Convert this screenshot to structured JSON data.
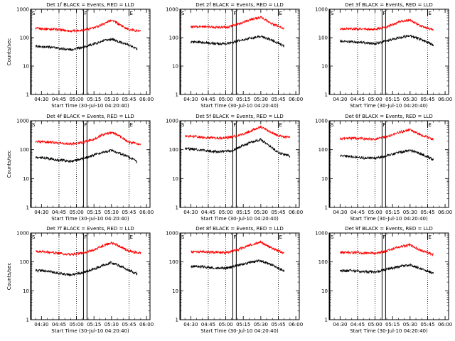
{
  "chart_data": [
    {
      "type": "line",
      "title": "Det 1f BLACK = Events, RED = LLD",
      "xlabel": "Start Time (30-Jul-10 04:20:40)",
      "ylabel": "Counts/sec",
      "ylim": [
        1,
        1000
      ],
      "yscale": "log",
      "yticks": [
        "1",
        "10",
        "100",
        "1000"
      ],
      "xticks": [
        "04:30",
        "04:45",
        "05:00",
        "05:15",
        "05:30",
        "05:45",
        "06:00"
      ],
      "xlim": [
        "04:20:40",
        "06:03"
      ],
      "markers": [
        "S",
        "F",
        "E"
      ],
      "series": [
        {
          "color": "#ff0000",
          "x": [
            "04:25",
            "04:35",
            "04:45",
            "04:55",
            "05:05",
            "05:15",
            "05:25",
            "05:30",
            "05:35",
            "05:45",
            "05:55"
          ],
          "y": [
            210,
            205,
            190,
            170,
            185,
            220,
            330,
            430,
            320,
            190,
            170
          ]
        },
        {
          "color": "#000000",
          "x": [
            "04:25",
            "04:35",
            "04:45",
            "04:55",
            "05:05",
            "05:15",
            "05:25",
            "05:30",
            "05:35",
            "05:45",
            "05:52"
          ],
          "y": [
            50,
            48,
            42,
            38,
            45,
            60,
            80,
            90,
            75,
            55,
            40
          ]
        }
      ]
    },
    {
      "type": "line",
      "title": "Det 2f BLACK = Events, RED = LLD",
      "xlabel": "Start Time (30-Jul-10 04:20:40)",
      "ylabel": "",
      "ylim": [
        1,
        1000
      ],
      "yscale": "log",
      "yticks": [
        "1",
        "10",
        "100",
        "1000"
      ],
      "xticks": [
        "04:30",
        "04:45",
        "05:00",
        "05:15",
        "05:30",
        "05:45",
        "06:00"
      ],
      "xlim": [
        "04:20:40",
        "06:03"
      ],
      "markers": [
        "S",
        "F",
        "E"
      ],
      "series": [
        {
          "color": "#ff0000",
          "x": [
            "04:30",
            "04:40",
            "04:50",
            "05:00",
            "05:10",
            "05:20",
            "05:30",
            "05:40",
            "05:50"
          ],
          "y": [
            240,
            245,
            235,
            230,
            290,
            420,
            520,
            300,
            210
          ]
        },
        {
          "color": "#000000",
          "x": [
            "04:30",
            "04:40",
            "04:50",
            "05:00",
            "05:10",
            "05:20",
            "05:30",
            "05:40",
            "05:50"
          ],
          "y": [
            70,
            68,
            62,
            60,
            75,
            95,
            110,
            80,
            50
          ]
        }
      ]
    },
    {
      "type": "line",
      "title": "Det 3f BLACK = Events, RED = LLD",
      "xlabel": "Start Time (30-Jul-10 04:20:40)",
      "ylabel": "",
      "ylim": [
        1,
        1000
      ],
      "yscale": "log",
      "yticks": [
        "1",
        "10",
        "100",
        "1000"
      ],
      "xticks": [
        "04:30",
        "04:45",
        "05:00",
        "05:15",
        "05:30",
        "05:45",
        "06:00"
      ],
      "xlim": [
        "04:20:40",
        "06:03"
      ],
      "markers": [
        "S",
        "F",
        "E"
      ],
      "series": [
        {
          "color": "#ff0000",
          "x": [
            "04:30",
            "04:40",
            "04:50",
            "05:00",
            "05:10",
            "05:20",
            "05:30",
            "05:40",
            "05:50"
          ],
          "y": [
            200,
            205,
            200,
            195,
            240,
            350,
            420,
            250,
            190
          ]
        },
        {
          "color": "#000000",
          "x": [
            "04:30",
            "04:40",
            "04:50",
            "05:00",
            "05:10",
            "05:20",
            "05:30",
            "05:40",
            "05:50"
          ],
          "y": [
            75,
            72,
            66,
            62,
            78,
            100,
            115,
            85,
            55
          ]
        }
      ]
    },
    {
      "type": "line",
      "title": "Det 4f BLACK = Events, RED = LLD",
      "xlabel": "Start Time (30-Jul-10 04:20:40)",
      "ylabel": "Counts/sec",
      "ylim": [
        1,
        1000
      ],
      "yscale": "log",
      "yticks": [
        "1",
        "10",
        "100",
        "1000"
      ],
      "xticks": [
        "04:30",
        "04:45",
        "05:00",
        "05:15",
        "05:30",
        "05:45",
        "06:00"
      ],
      "xlim": [
        "04:20:40",
        "06:03"
      ],
      "markers": [
        "S",
        "F",
        "E"
      ],
      "series": [
        {
          "color": "#ff0000",
          "x": [
            "04:25",
            "04:35",
            "04:45",
            "04:55",
            "05:05",
            "05:15",
            "05:25",
            "05:30",
            "05:35",
            "05:45",
            "05:55"
          ],
          "y": [
            190,
            185,
            170,
            160,
            175,
            230,
            360,
            400,
            330,
            180,
            150
          ]
        },
        {
          "color": "#000000",
          "x": [
            "04:25",
            "04:35",
            "04:45",
            "04:55",
            "05:05",
            "05:15",
            "05:25",
            "05:30",
            "05:35",
            "05:45",
            "05:52"
          ],
          "y": [
            55,
            50,
            43,
            40,
            48,
            65,
            85,
            95,
            80,
            55,
            38
          ]
        }
      ]
    },
    {
      "type": "line",
      "title": "Det 5f BLACK = Events, RED = LLD",
      "xlabel": "Start Time (30-Jul-10 04:20:40)",
      "ylabel": "",
      "ylim": [
        1,
        1000
      ],
      "yscale": "log",
      "yticks": [
        "1",
        "10",
        "100",
        "1000"
      ],
      "xticks": [
        "04:30",
        "04:45",
        "05:00",
        "05:15",
        "05:30",
        "05:45",
        "06:00"
      ],
      "xlim": [
        "04:20:40",
        "06:03"
      ],
      "markers": [
        "S",
        "F",
        "E"
      ],
      "series": [
        {
          "color": "#ff0000",
          "x": [
            "04:25",
            "04:35",
            "04:45",
            "04:55",
            "05:05",
            "05:15",
            "05:25",
            "05:30",
            "05:35",
            "05:45",
            "05:55"
          ],
          "y": [
            290,
            280,
            260,
            250,
            270,
            340,
            520,
            600,
            480,
            300,
            260
          ]
        },
        {
          "color": "#000000",
          "x": [
            "04:25",
            "04:35",
            "04:45",
            "04:55",
            "05:05",
            "05:15",
            "05:25",
            "05:30",
            "05:35",
            "05:45",
            "05:55"
          ],
          "y": [
            110,
            100,
            90,
            85,
            90,
            140,
            200,
            220,
            160,
            80,
            60
          ]
        }
      ]
    },
    {
      "type": "line",
      "title": "Det 6f BLACK = Events, RED = LLD",
      "xlabel": "Start Time (30-Jul-10 04:20:40)",
      "ylabel": "",
      "ylim": [
        1,
        1000
      ],
      "yscale": "log",
      "yticks": [
        "1",
        "10",
        "100",
        "1000"
      ],
      "xticks": [
        "04:30",
        "04:45",
        "05:00",
        "05:15",
        "05:30",
        "05:45",
        "06:00"
      ],
      "xlim": [
        "04:20:40",
        "06:03"
      ],
      "markers": [
        "S",
        "F",
        "E"
      ],
      "series": [
        {
          "color": "#ff0000",
          "x": [
            "04:30",
            "04:40",
            "04:50",
            "05:00",
            "05:10",
            "05:20",
            "05:30",
            "05:40",
            "05:50"
          ],
          "y": [
            240,
            250,
            240,
            230,
            280,
            400,
            480,
            320,
            230
          ]
        },
        {
          "color": "#000000",
          "x": [
            "04:30",
            "04:40",
            "04:50",
            "05:00",
            "05:10",
            "05:20",
            "05:30",
            "05:40",
            "05:50"
          ],
          "y": [
            60,
            58,
            52,
            50,
            62,
            80,
            95,
            70,
            45
          ]
        }
      ]
    },
    {
      "type": "line",
      "title": "Det 7f BLACK = Events, RED = LLD",
      "xlabel": "Start Time (30-Jul-10 04:20:40)",
      "ylabel": "Counts/sec",
      "ylim": [
        1,
        1000
      ],
      "yscale": "log",
      "yticks": [
        "1",
        "10",
        "100",
        "1000"
      ],
      "xticks": [
        "04:30",
        "04:45",
        "05:00",
        "05:15",
        "05:30",
        "05:45",
        "06:00"
      ],
      "xlim": [
        "04:20:40",
        "06:03"
      ],
      "markers": [
        "S",
        "F",
        "E"
      ],
      "series": [
        {
          "color": "#ff0000",
          "x": [
            "04:25",
            "04:35",
            "04:45",
            "04:55",
            "05:05",
            "05:15",
            "05:25",
            "05:30",
            "05:35",
            "05:45",
            "05:55"
          ],
          "y": [
            230,
            220,
            200,
            180,
            200,
            260,
            400,
            460,
            380,
            240,
            200
          ]
        },
        {
          "color": "#000000",
          "x": [
            "04:25",
            "04:35",
            "04:45",
            "04:55",
            "05:05",
            "05:15",
            "05:25",
            "05:30",
            "05:35",
            "05:45",
            "05:52"
          ],
          "y": [
            50,
            48,
            40,
            36,
            42,
            58,
            80,
            95,
            80,
            52,
            38
          ]
        }
      ]
    },
    {
      "type": "line",
      "title": "Det 8f BLACK = Events, RED = LLD",
      "xlabel": "Start Time (30-Jul-10 04:20:40)",
      "ylabel": "",
      "ylim": [
        1,
        1000
      ],
      "yscale": "log",
      "yticks": [
        "1",
        "10",
        "100",
        "1000"
      ],
      "xticks": [
        "04:30",
        "04:45",
        "05:00",
        "05:15",
        "05:30",
        "05:45",
        "06:00"
      ],
      "xlim": [
        "04:20:40",
        "06:03"
      ],
      "markers": [
        "S",
        "F",
        "E"
      ],
      "series": [
        {
          "color": "#ff0000",
          "x": [
            "04:30",
            "04:40",
            "04:50",
            "05:00",
            "05:10",
            "05:20",
            "05:30",
            "05:40",
            "05:50"
          ],
          "y": [
            220,
            225,
            215,
            210,
            260,
            380,
            480,
            290,
            200
          ]
        },
        {
          "color": "#000000",
          "x": [
            "04:30",
            "04:40",
            "04:50",
            "05:00",
            "05:10",
            "05:20",
            "05:30",
            "05:40",
            "05:50"
          ],
          "y": [
            70,
            68,
            62,
            60,
            75,
            95,
            110,
            78,
            48
          ]
        }
      ]
    },
    {
      "type": "line",
      "title": "Det 9f BLACK = Events, RED = LLD",
      "xlabel": "Start Time (30-Jul-10 04:20:40)",
      "ylabel": "",
      "ylim": [
        1,
        1000
      ],
      "yscale": "log",
      "yticks": [
        "1",
        "10",
        "100",
        "1000"
      ],
      "xticks": [
        "04:30",
        "04:45",
        "05:00",
        "05:15",
        "05:30",
        "05:45",
        "06:00"
      ],
      "xlim": [
        "04:20:40",
        "06:03"
      ],
      "markers": [
        "S",
        "F",
        "E"
      ],
      "series": [
        {
          "color": "#ff0000",
          "x": [
            "04:30",
            "04:40",
            "04:50",
            "05:00",
            "05:10",
            "05:20",
            "05:30",
            "05:40",
            "05:50"
          ],
          "y": [
            210,
            215,
            205,
            200,
            240,
            330,
            380,
            240,
            180
          ]
        },
        {
          "color": "#000000",
          "x": [
            "04:30",
            "04:40",
            "04:50",
            "05:00",
            "05:10",
            "05:20",
            "05:30",
            "05:40",
            "05:50"
          ],
          "y": [
            50,
            50,
            46,
            44,
            55,
            68,
            78,
            58,
            40
          ]
        }
      ]
    }
  ]
}
